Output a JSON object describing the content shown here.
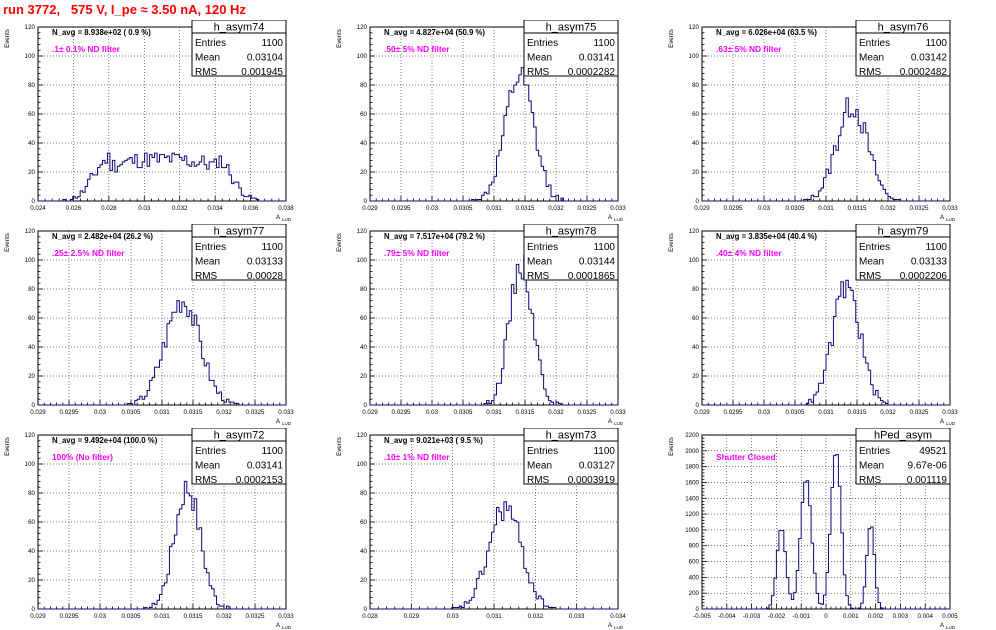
{
  "page_title": "run 3772,   575 V, I_pe ≈ 3.50 nA, 120 Hz",
  "stats_labels": {
    "entries": "Entries",
    "mean": "Mean",
    "rms": "RMS"
  },
  "colors": {
    "histogram": "#0b0b7a",
    "annotation": "#ff00ff",
    "title": "#ff0000",
    "grid": "#000000"
  },
  "chart_data": [
    {
      "type": "histogram",
      "name": "h_asym74",
      "navg": "N_avg = 8.938e+02 ( 0.9 %)",
      "note": ".1± 0.1% ND filter",
      "entries": "1100",
      "mean": "0.03104",
      "rms": "0.001945",
      "ylabel": "Events",
      "xlabel": "A",
      "xlim": [
        0.024,
        0.038
      ],
      "ylim": [
        0,
        120
      ],
      "xticks": [
        "0.024",
        "0.026",
        "0.028",
        "0.03",
        "0.032",
        "0.034",
        "0.036",
        "0.038"
      ],
      "yticks": [
        "0",
        "20",
        "40",
        "60",
        "80",
        "100",
        "120"
      ],
      "mu": 0.03104,
      "sigma": 0.0019,
      "peak": 29,
      "shape": "flat",
      "seed": 11
    },
    {
      "type": "histogram",
      "name": "h_asym75",
      "navg": "N_avg = 4.827e+04 (50.9 %)",
      "note": ".50± 5% ND filter",
      "entries": "1100",
      "mean": "0.03141",
      "rms": "0.0002282",
      "ylabel": "Events",
      "xlabel": "A",
      "xlim": [
        0.029,
        0.033
      ],
      "ylim": [
        0,
        120
      ],
      "xticks": [
        "0.029",
        "0.0295",
        "0.03",
        "0.0305",
        "0.031",
        "0.0315",
        "0.032",
        "0.0325",
        "0.033"
      ],
      "yticks": [
        "0",
        "20",
        "40",
        "60",
        "80",
        "100",
        "120"
      ],
      "mu": 0.03141,
      "sigma": 0.00023,
      "peak": 85,
      "shape": "gauss",
      "seed": 12
    },
    {
      "type": "histogram",
      "name": "h_asym76",
      "navg": "N_avg = 6.026e+04 (63.5 %)",
      "note": ".63± 5% ND filter",
      "entries": "1100",
      "mean": "0.03142",
      "rms": "0.0002482",
      "ylabel": "Events",
      "xlabel": "A",
      "xlim": [
        0.029,
        0.033
      ],
      "ylim": [
        0,
        120
      ],
      "xticks": [
        "0.029",
        "0.0295",
        "0.03",
        "0.0305",
        "0.031",
        "0.0315",
        "0.032",
        "0.0325",
        "0.033"
      ],
      "yticks": [
        "0",
        "20",
        "40",
        "60",
        "80",
        "100",
        "120"
      ],
      "mu": 0.03142,
      "sigma": 0.00025,
      "peak": 66,
      "shape": "gauss",
      "seed": 13
    },
    {
      "type": "histogram",
      "name": "h_asym77",
      "navg": "N_avg = 2.482e+04 (26.2 %)",
      "note": ".25± 2.5% ND filter",
      "entries": "1100",
      "mean": "0.03133",
      "rms": "0.00028",
      "ylabel": "Events",
      "xlabel": "A",
      "xlim": [
        0.029,
        0.033
      ],
      "ylim": [
        0,
        120
      ],
      "xticks": [
        "0.029",
        "0.0295",
        "0.03",
        "0.0305",
        "0.031",
        "0.0315",
        "0.032",
        "0.0325",
        "0.033"
      ],
      "yticks": [
        "0",
        "20",
        "40",
        "60",
        "80",
        "100",
        "120"
      ],
      "mu": 0.03133,
      "sigma": 0.00028,
      "peak": 72,
      "shape": "gauss",
      "seed": 14
    },
    {
      "type": "histogram",
      "name": "h_asym78",
      "navg": "N_avg = 7.517e+04 (79.2 %)",
      "note": ".79± 5% ND filter",
      "entries": "1100",
      "mean": "0.03144",
      "rms": "0.0001865",
      "ylabel": "Events",
      "xlabel": "A",
      "xlim": [
        0.029,
        0.033
      ],
      "ylim": [
        0,
        120
      ],
      "xticks": [
        "0.029",
        "0.0295",
        "0.03",
        "0.0305",
        "0.031",
        "0.0315",
        "0.032",
        "0.0325",
        "0.033"
      ],
      "yticks": [
        "0",
        "20",
        "40",
        "60",
        "80",
        "100",
        "120"
      ],
      "mu": 0.03144,
      "sigma": 0.00019,
      "peak": 98,
      "shape": "gauss",
      "seed": 15
    },
    {
      "type": "histogram",
      "name": "h_asym79",
      "navg": "N_avg = 3.835e+04 (40.4 %)",
      "note": ".40± 4% ND filter",
      "entries": "1100",
      "mean": "0.03133",
      "rms": "0.0002206",
      "ylabel": "Events",
      "xlabel": "A",
      "xlim": [
        0.029,
        0.033
      ],
      "ylim": [
        0,
        120
      ],
      "xticks": [
        "0.029",
        "0.0295",
        "0.03",
        "0.0305",
        "0.031",
        "0.0315",
        "0.032",
        "0.0325",
        "0.033"
      ],
      "yticks": [
        "0",
        "20",
        "40",
        "60",
        "80",
        "100",
        "120"
      ],
      "mu": 0.03133,
      "sigma": 0.00022,
      "peak": 82,
      "shape": "gauss",
      "seed": 16
    },
    {
      "type": "histogram",
      "name": "h_asym72",
      "navg": "N_avg = 9.492e+04 (100.0 %)",
      "note": "100% (No filter)",
      "entries": "1100",
      "mean": "0.03141",
      "rms": "0.0002153",
      "ylabel": "Events",
      "xlabel": "A",
      "xlim": [
        0.029,
        0.033
      ],
      "ylim": [
        0,
        120
      ],
      "xticks": [
        "0.029",
        "0.0295",
        "0.03",
        "0.0305",
        "0.031",
        "0.0315",
        "0.032",
        "0.0325",
        "0.033"
      ],
      "yticks": [
        "0",
        "20",
        "40",
        "60",
        "80",
        "100",
        "120"
      ],
      "mu": 0.03141,
      "sigma": 0.00021,
      "peak": 84,
      "shape": "gauss",
      "seed": 17
    },
    {
      "type": "histogram",
      "name": "h_asym73",
      "navg": "N_avg = 9.021e+03 ( 9.5 %)",
      "note": ".10± 1% ND filter",
      "entries": "1100",
      "mean": "0.03127",
      "rms": "0.0003919",
      "ylabel": "Events",
      "xlabel": "A",
      "xlim": [
        0.028,
        0.034
      ],
      "ylim": [
        0,
        120
      ],
      "xticks": [
        "0.028",
        "0.029",
        "0.03",
        "0.031",
        "0.032",
        "0.033",
        "0.034"
      ],
      "yticks": [
        "0",
        "20",
        "40",
        "60",
        "80",
        "100",
        "120"
      ],
      "mu": 0.03127,
      "sigma": 0.00039,
      "peak": 70,
      "shape": "gauss",
      "seed": 18
    },
    {
      "type": "histogram",
      "name": "hPed_asym",
      "navg": "",
      "note": "Shutter Closed",
      "entries": "49521",
      "mean": "9.67e-06",
      "rms": "0.001119",
      "ylabel": "Events",
      "xlabel": "A",
      "xlim": [
        -0.005,
        0.005
      ],
      "ylim": [
        0,
        2200
      ],
      "xticks": [
        "-0.005",
        "-0.004",
        "-0.003",
        "-0.002",
        "-0.001",
        "0",
        "0.001",
        "0.002",
        "0.003",
        "0.004",
        "0.005"
      ],
      "yticks": [
        "0",
        "200",
        "400",
        "600",
        "800",
        "1000",
        "1200",
        "1400",
        "1600",
        "1800",
        "2000",
        "2200"
      ],
      "mu": 0.0,
      "sigma": 0.0011,
      "peak": 2100,
      "shape": "multi",
      "seed": 19,
      "components": [
        [
          -0.0018,
          0.00018,
          1050
        ],
        [
          -0.0008,
          0.00022,
          1650
        ],
        [
          0.0004,
          0.0002,
          2050
        ],
        [
          0.0018,
          0.00015,
          1100
        ]
      ]
    }
  ]
}
